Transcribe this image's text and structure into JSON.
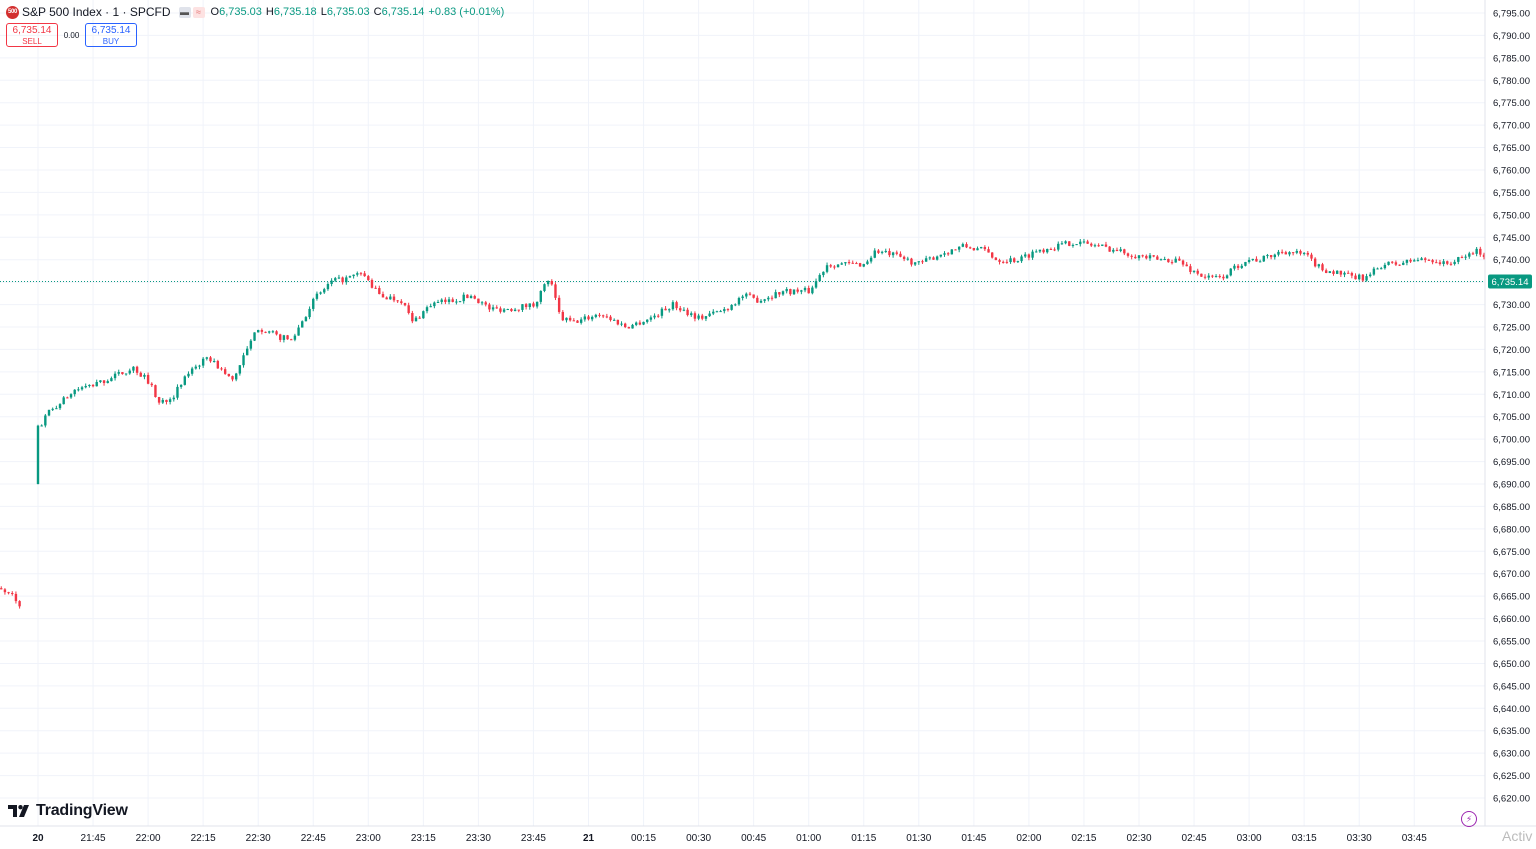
{
  "header": {
    "symbol_badge": "500",
    "title": "S&P 500 Index · 1 · SPCFD",
    "ohlc": {
      "o_label": "O",
      "o_value": "6,735.03",
      "h_label": "H",
      "h_value": "6,735.18",
      "l_label": "L",
      "l_value": "6,735.03",
      "c_label": "C",
      "c_value": "6,735.14",
      "change": "+0.83 (+0.01%)"
    }
  },
  "trade": {
    "sell_price": "6,735.14",
    "sell_label": "SELL",
    "spread": "0.00",
    "buy_price": "6,735.14",
    "buy_label": "BUY"
  },
  "branding": {
    "logo_text": "TradingView"
  },
  "overlay": {
    "activate_text": "Activ"
  },
  "colors": {
    "up": "#089981",
    "down": "#f23645",
    "grid": "#f0f3fa",
    "axis_text": "#131722",
    "last_price_bg": "#089981"
  },
  "icons": {
    "symbol": "sp500-logo-icon",
    "bolt": "lightning-icon",
    "logo": "tradingview-logo-icon"
  },
  "chart_data": {
    "type": "candlestick",
    "interval": "1 minute",
    "last_price": "6,735.14",
    "y_axis": {
      "range": [
        6618,
        6797
      ],
      "ticks": [
        "6,795.00",
        "6,790.00",
        "6,785.00",
        "6,780.00",
        "6,775.00",
        "6,770.00",
        "6,765.00",
        "6,760.00",
        "6,755.00",
        "6,750.00",
        "6,745.00",
        "6,740.00",
        "6,735.00",
        "6,730.00",
        "6,725.00",
        "6,720.00",
        "6,715.00",
        "6,710.00",
        "6,705.00",
        "6,700.00",
        "6,695.00",
        "6,690.00",
        "6,685.00",
        "6,680.00",
        "6,675.00",
        "6,670.00",
        "6,665.00",
        "6,660.00",
        "6,655.00",
        "6,650.00",
        "6,645.00",
        "6,640.00",
        "6,635.00",
        "6,630.00",
        "6,625.00",
        "6,620.00"
      ]
    },
    "x_axis": {
      "ticks": [
        "20",
        "21:45",
        "22:00",
        "22:15",
        "22:30",
        "22:45",
        "23:00",
        "23:15",
        "23:30",
        "23:45",
        "21",
        "00:15",
        "00:30",
        "00:45",
        "01:00",
        "01:15",
        "01:30",
        "01:45",
        "02:00",
        "02:15",
        "02:30",
        "02:45",
        "03:00",
        "03:15",
        "03:30",
        "03:45"
      ],
      "bold_ticks": [
        "20",
        "21"
      ]
    },
    "path": [
      [
        21.25,
        6665
      ],
      [
        21.33,
        6666
      ],
      [
        21.39,
        6664
      ],
      [
        21.42,
        6663
      ],
      [
        21.5,
        6702
      ],
      [
        21.55,
        6706
      ],
      [
        21.6,
        6708
      ],
      [
        21.67,
        6711
      ],
      [
        21.75,
        6712
      ],
      [
        21.85,
        6714
      ],
      [
        21.93,
        6716
      ],
      [
        22.0,
        6713
      ],
      [
        22.05,
        6708
      ],
      [
        22.12,
        6710
      ],
      [
        22.2,
        6716
      ],
      [
        22.28,
        6718
      ],
      [
        22.38,
        6713
      ],
      [
        22.5,
        6725
      ],
      [
        22.58,
        6723
      ],
      [
        22.65,
        6722
      ],
      [
        22.75,
        6731
      ],
      [
        22.83,
        6735
      ],
      [
        22.92,
        6736
      ],
      [
        22.97,
        6737
      ],
      [
        23.05,
        6732
      ],
      [
        23.15,
        6731
      ],
      [
        23.2,
        6726
      ],
      [
        23.28,
        6730
      ],
      [
        23.38,
        6731
      ],
      [
        23.47,
        6732
      ],
      [
        23.55,
        6729
      ],
      [
        23.63,
        6729
      ],
      [
        23.75,
        6730
      ],
      [
        23.82,
        6736
      ],
      [
        23.87,
        6727
      ],
      [
        23.93,
        6726
      ],
      [
        24.05,
        6728
      ],
      [
        24.17,
        6725
      ],
      [
        24.28,
        6727
      ],
      [
        24.38,
        6730
      ],
      [
        24.5,
        6727
      ],
      [
        24.62,
        6729
      ],
      [
        24.7,
        6732
      ],
      [
        24.77,
        6731
      ],
      [
        24.88,
        6733
      ],
      [
        25.0,
        6733
      ],
      [
        25.08,
        6739
      ],
      [
        25.15,
        6739
      ],
      [
        25.25,
        6739
      ],
      [
        25.3,
        6742
      ],
      [
        25.38,
        6741
      ],
      [
        25.5,
        6739
      ],
      [
        25.58,
        6741
      ],
      [
        25.7,
        6743
      ],
      [
        25.8,
        6742
      ],
      [
        25.85,
        6740
      ],
      [
        25.95,
        6740
      ],
      [
        26.03,
        6742
      ],
      [
        26.12,
        6743
      ],
      [
        26.2,
        6744
      ],
      [
        26.32,
        6743
      ],
      [
        26.4,
        6742
      ],
      [
        26.48,
        6741
      ],
      [
        26.58,
        6740
      ],
      [
        26.67,
        6740
      ],
      [
        26.72,
        6738
      ],
      [
        26.8,
        6736
      ],
      [
        26.87,
        6736
      ],
      [
        26.98,
        6740
      ],
      [
        27.05,
        6740
      ],
      [
        27.15,
        6742
      ],
      [
        27.25,
        6741
      ],
      [
        27.32,
        6738
      ],
      [
        27.4,
        6737
      ],
      [
        27.47,
        6736
      ],
      [
        27.53,
        6736
      ],
      [
        27.6,
        6739
      ],
      [
        27.67,
        6739
      ],
      [
        27.75,
        6740
      ],
      [
        27.83,
        6740
      ],
      [
        27.88,
        6739
      ],
      [
        27.95,
        6740
      ],
      [
        28.02,
        6742
      ],
      [
        28.07,
        6741
      ],
      [
        28.13,
        6740
      ],
      [
        28.17,
        6737
      ],
      [
        28.23,
        6736
      ],
      [
        28.3,
        6735
      ]
    ],
    "event": {
      "session_open": "20",
      "open_price_approx": 6690
    }
  }
}
